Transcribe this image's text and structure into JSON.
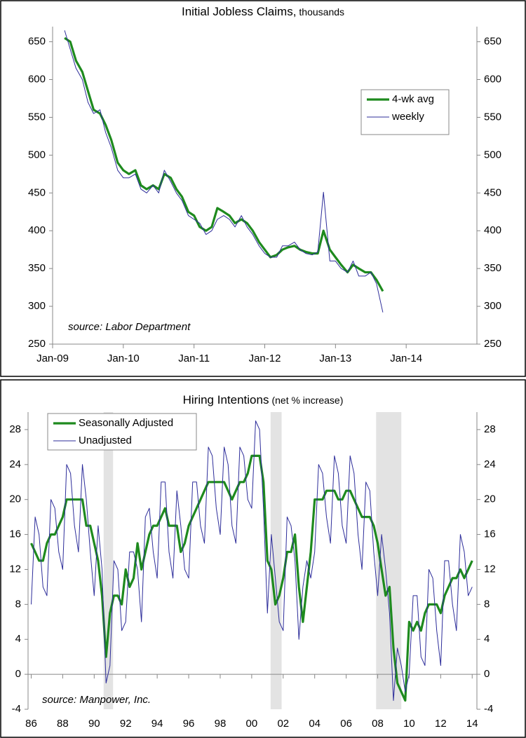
{
  "chart_data": [
    {
      "type": "line",
      "title": "Initial Jobless Claims,",
      "subtitle": "thousands",
      "annotation": "source: Labor Department",
      "x": [
        2009.17,
        2009.25,
        2009.33,
        2009.42,
        2009.5,
        2009.58,
        2009.67,
        2009.75,
        2009.83,
        2009.92,
        2010.0,
        2010.08,
        2010.17,
        2010.25,
        2010.33,
        2010.42,
        2010.5,
        2010.58,
        2010.67,
        2010.75,
        2010.83,
        2010.92,
        2011.0,
        2011.08,
        2011.17,
        2011.25,
        2011.33,
        2011.42,
        2011.5,
        2011.58,
        2011.67,
        2011.75,
        2011.83,
        2011.92,
        2012.0,
        2012.08,
        2012.17,
        2012.25,
        2012.33,
        2012.42,
        2012.5,
        2012.58,
        2012.67,
        2012.75,
        2012.83,
        2012.92,
        2013.0,
        2013.08,
        2013.17,
        2013.25,
        2013.33,
        2013.42,
        2013.5,
        2013.58,
        2013.67
      ],
      "series": [
        {
          "name": "4-wk avg",
          "color": "#1e8a1e",
          "width": 3.2,
          "values": [
            655,
            650,
            625,
            610,
            585,
            560,
            555,
            540,
            520,
            490,
            480,
            475,
            480,
            460,
            455,
            460,
            455,
            475,
            470,
            455,
            445,
            425,
            420,
            405,
            400,
            405,
            430,
            425,
            420,
            410,
            415,
            410,
            400,
            385,
            375,
            365,
            368,
            375,
            378,
            380,
            375,
            372,
            370,
            370,
            400,
            375,
            365,
            355,
            345,
            355,
            350,
            345,
            345,
            335,
            320
          ]
        },
        {
          "name": "weekly",
          "color": "#2d2d9a",
          "width": 1,
          "values": [
            665,
            640,
            615,
            600,
            570,
            555,
            560,
            530,
            510,
            480,
            470,
            470,
            475,
            455,
            450,
            460,
            450,
            480,
            465,
            450,
            440,
            420,
            415,
            410,
            395,
            400,
            415,
            420,
            415,
            405,
            420,
            405,
            395,
            380,
            370,
            365,
            365,
            380,
            380,
            385,
            375,
            370,
            368,
            372,
            451,
            360,
            360,
            350,
            345,
            360,
            340,
            340,
            345,
            330,
            292
          ]
        }
      ],
      "xlim": [
        2009,
        2015
      ],
      "xticks": [
        {
          "value": 2009,
          "label": "Jan-09"
        },
        {
          "value": 2010,
          "label": "Jan-10"
        },
        {
          "value": 2011,
          "label": "Jan-11"
        },
        {
          "value": 2012,
          "label": "Jan-12"
        },
        {
          "value": 2013,
          "label": "Jan-13"
        },
        {
          "value": 2014,
          "label": "Jan-14"
        }
      ],
      "ylim": [
        250,
        670
      ],
      "yticks": [
        250,
        300,
        350,
        400,
        450,
        500,
        550,
        600,
        650
      ],
      "legend": "upper right"
    },
    {
      "type": "line",
      "title": "Hiring Intentions",
      "subtitle": "(net % increase)",
      "annotation": "source: Manpower, Inc.",
      "x": [
        1986,
        1986.25,
        1986.5,
        1986.75,
        1987,
        1987.25,
        1987.5,
        1987.75,
        1988,
        1988.25,
        1988.5,
        1988.75,
        1989,
        1989.25,
        1989.5,
        1989.75,
        1990,
        1990.25,
        1990.5,
        1990.75,
        1991,
        1991.25,
        1991.5,
        1991.75,
        1992,
        1992.25,
        1992.5,
        1992.75,
        1993,
        1993.25,
        1993.5,
        1993.75,
        1994,
        1994.25,
        1994.5,
        1994.75,
        1995,
        1995.25,
        1995.5,
        1995.75,
        1996,
        1996.25,
        1996.5,
        1996.75,
        1997,
        1997.25,
        1997.5,
        1997.75,
        1998,
        1998.25,
        1998.5,
        1998.75,
        1999,
        1999.25,
        1999.5,
        1999.75,
        2000,
        2000.25,
        2000.5,
        2000.75,
        2001,
        2001.25,
        2001.5,
        2001.75,
        2002,
        2002.25,
        2002.5,
        2002.75,
        2003,
        2003.25,
        2003.5,
        2003.75,
        2004,
        2004.25,
        2004.5,
        2004.75,
        2005,
        2005.25,
        2005.5,
        2005.75,
        2006,
        2006.25,
        2006.5,
        2006.75,
        2007,
        2007.25,
        2007.5,
        2007.75,
        2008,
        2008.25,
        2008.5,
        2008.75,
        2009,
        2009.25,
        2009.5,
        2009.75,
        2010,
        2010.25,
        2010.5,
        2010.75,
        2011,
        2011.25,
        2011.5,
        2011.75,
        2012,
        2012.25,
        2012.5,
        2012.75,
        2013,
        2013.25,
        2013.5,
        2013.75,
        2014
      ],
      "series": [
        {
          "name": "Seasonally Adjusted",
          "color": "#1e8a1e",
          "width": 3.2,
          "values": [
            15,
            14,
            13,
            13,
            15,
            16,
            16,
            17,
            18,
            20,
            20,
            20,
            20,
            20,
            17,
            17,
            15,
            13,
            9,
            2,
            7,
            9,
            9,
            8,
            12,
            10,
            11,
            15,
            12,
            14,
            16,
            17,
            17,
            18,
            19,
            17,
            17,
            17,
            14,
            15,
            17,
            18,
            19,
            20,
            21,
            22,
            22,
            22,
            22,
            22,
            21,
            20,
            21,
            22,
            22,
            23,
            25,
            25,
            25,
            22,
            13,
            12,
            8,
            9,
            11,
            14,
            14,
            16,
            10,
            6,
            10,
            14,
            20,
            20,
            20,
            21,
            21,
            21,
            20,
            20,
            21,
            21,
            20,
            19,
            18,
            18,
            18,
            17,
            15,
            12,
            9,
            10,
            3,
            -1,
            -2,
            -3,
            6,
            5,
            6,
            5,
            7,
            8,
            8,
            8,
            7,
            9,
            10,
            11,
            11,
            12,
            11,
            12,
            13
          ]
        },
        {
          "name": "Unadjusted",
          "color": "#2d2d9a",
          "width": 1,
          "values": [
            8,
            18,
            16,
            10,
            9,
            20,
            19,
            14,
            12,
            24,
            23,
            17,
            14,
            24,
            20,
            14,
            9,
            17,
            12,
            -1,
            1,
            13,
            12,
            5,
            6,
            14,
            14,
            12,
            6,
            18,
            19,
            14,
            11,
            22,
            22,
            14,
            11,
            21,
            17,
            12,
            11,
            22,
            22,
            17,
            15,
            26,
            25,
            19,
            16,
            26,
            24,
            17,
            15,
            26,
            25,
            20,
            19,
            29,
            28,
            19,
            7,
            16,
            11,
            6,
            5,
            18,
            17,
            13,
            4,
            10,
            13,
            11,
            14,
            24,
            23,
            18,
            15,
            25,
            23,
            17,
            15,
            25,
            23,
            16,
            12,
            22,
            21,
            14,
            9,
            16,
            12,
            7,
            -3,
            3,
            1,
            -2,
            0,
            9,
            9,
            2,
            1,
            12,
            11,
            5,
            1,
            13,
            13,
            8,
            5,
            16,
            14,
            9,
            10
          ]
        }
      ],
      "recessions": [
        [
          1990.6,
          1991.2
        ],
        [
          2001.2,
          2001.9
        ],
        [
          2007.9,
          2009.5
        ]
      ],
      "xlim": [
        1985.8,
        2014.3
      ],
      "xticks": [
        {
          "value": 1986,
          "label": "86"
        },
        {
          "value": 1988,
          "label": "88"
        },
        {
          "value": 1990,
          "label": "90"
        },
        {
          "value": 1992,
          "label": "92"
        },
        {
          "value": 1994,
          "label": "94"
        },
        {
          "value": 1996,
          "label": "96"
        },
        {
          "value": 1998,
          "label": "98"
        },
        {
          "value": 2000,
          "label": "00"
        },
        {
          "value": 2002,
          "label": "02"
        },
        {
          "value": 2004,
          "label": "04"
        },
        {
          "value": 2006,
          "label": "06"
        },
        {
          "value": 2008,
          "label": "08"
        },
        {
          "value": 2010,
          "label": "10"
        },
        {
          "value": 2012,
          "label": "12"
        },
        {
          "value": 2014,
          "label": "14"
        }
      ],
      "ylim": [
        -4,
        30
      ],
      "yticks": [
        -4,
        0,
        4,
        8,
        12,
        16,
        20,
        24,
        28
      ],
      "legend": "upper left"
    }
  ]
}
